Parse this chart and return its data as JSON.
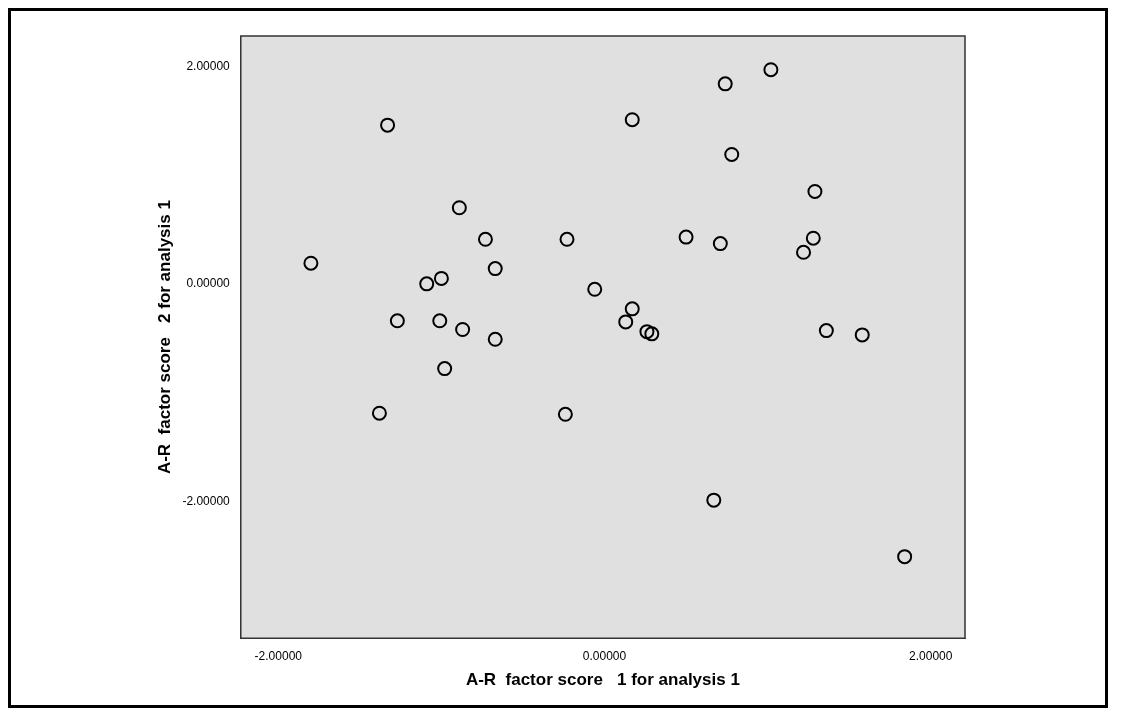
{
  "chart_data": {
    "type": "scatter",
    "xlabel": "A-R  factor score   1 for analysis 1",
    "ylabel": "A-R  factor score   2 for analysis 1",
    "xlim": [
      -2.23,
      2.21
    ],
    "ylim": [
      -3.26,
      2.28
    ],
    "xticks": [
      {
        "value": -2,
        "label": "-2.00000"
      },
      {
        "value": 0,
        "label": "0.00000"
      },
      {
        "value": 2,
        "label": "2.00000"
      }
    ],
    "yticks": [
      {
        "value": -2,
        "label": "-2.00000"
      },
      {
        "value": 0,
        "label": "0.00000"
      },
      {
        "value": 2,
        "label": "2.00000"
      }
    ],
    "grid": false,
    "legend": false,
    "marker": "circle",
    "series": [
      {
        "color": "#000000",
        "x": [
          -0.89,
          -0.73,
          -0.23,
          0.5,
          -1.0,
          -1.09,
          -0.67,
          -0.06,
          0.17,
          0.13,
          0.26,
          0.29,
          -1.27,
          -1.01,
          -0.87,
          -0.67,
          -0.98,
          -1.38,
          -0.24,
          -1.33,
          -1.8,
          0.17,
          0.74,
          0.78,
          1.02,
          0.71,
          1.22,
          1.28,
          1.29,
          1.36,
          1.58,
          0.67,
          1.84
        ],
        "values": [
          0.7,
          0.41,
          0.41,
          0.43,
          0.05,
          0.0,
          0.14,
          -0.05,
          -0.23,
          -0.35,
          -0.44,
          -0.46,
          -0.34,
          -0.34,
          -0.42,
          -0.51,
          -0.78,
          -1.19,
          -1.2,
          1.46,
          0.19,
          1.51,
          1.84,
          1.19,
          1.97,
          0.37,
          0.29,
          0.42,
          0.85,
          -0.43,
          -0.47,
          -1.99,
          -2.51
        ]
      }
    ]
  }
}
